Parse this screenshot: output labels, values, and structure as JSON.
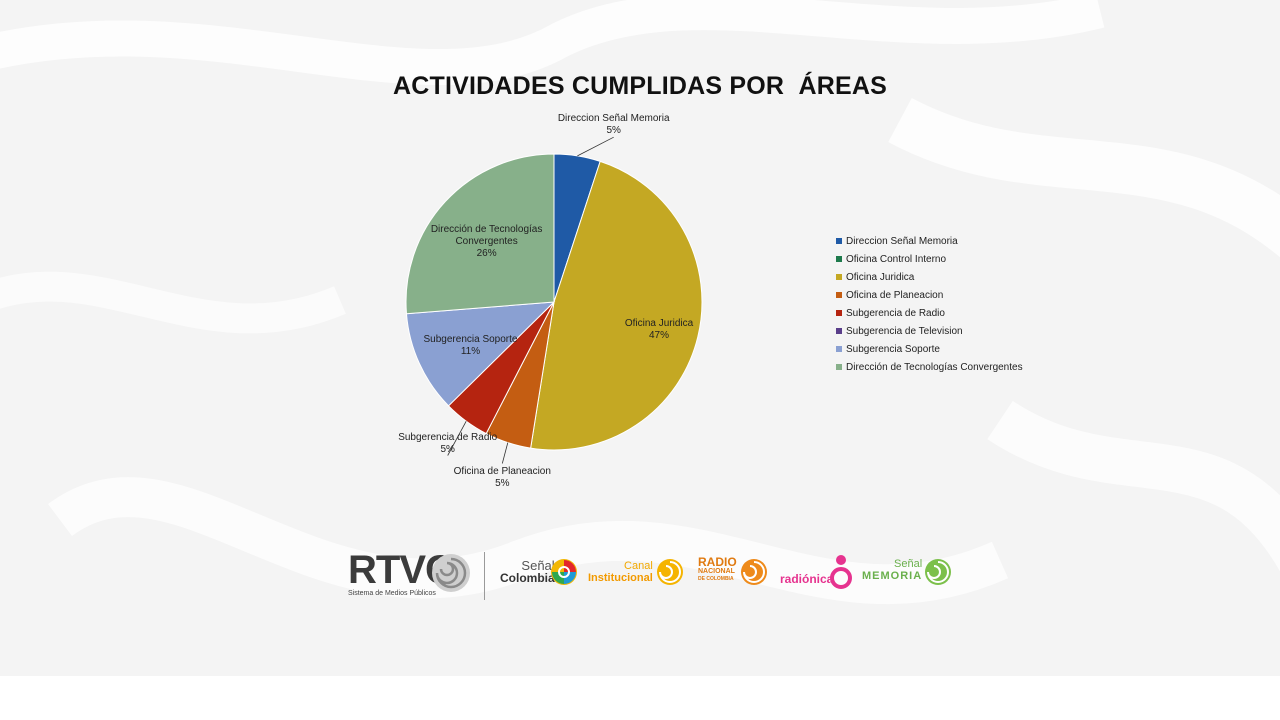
{
  "chart_data": {
    "type": "pie",
    "title": "ACTIVIDADES CUMPLIDAS POR  ÁREAS",
    "legend_position": "right",
    "slices": [
      {
        "label": "Direccion Señal Memoria",
        "value": 5,
        "value_label": "5%",
        "color": "#1f5aa6",
        "show_label": true
      },
      {
        "label": "Oficina Control Interno",
        "value": 0,
        "value_label": "0%",
        "color": "#1e7a4c",
        "show_label": false
      },
      {
        "label": "Oficina Juridica",
        "value": 47,
        "value_label": "47%",
        "color": "#c4a823",
        "show_label": true
      },
      {
        "label": "Oficina de Planeacion",
        "value": 5,
        "value_label": "5%",
        "color": "#c45d12",
        "show_label": true
      },
      {
        "label": "Subgerencia de Radio",
        "value": 5,
        "value_label": "5%",
        "color": "#b52410",
        "show_label": true
      },
      {
        "label": "Subgerencia de Television",
        "value": 0,
        "value_label": "0%",
        "color": "#5a3e8a",
        "show_label": false
      },
      {
        "label": "Subgerencia Soporte",
        "value": 11,
        "value_label": "11%",
        "color": "#8aa0d2",
        "show_label": true
      },
      {
        "label": "Dirección de Tecnologías Convergentes",
        "value": 26,
        "value_label": "26%",
        "color": "#87b08a",
        "show_label": true
      }
    ],
    "data_labels": [
      {
        "lines": [
          "Direccion Señal Memoria",
          "5%"
        ]
      },
      {
        "lines": [
          "Oficina Juridica",
          "47%"
        ]
      },
      {
        "lines": [
          "Oficina de Planeacion",
          "5%"
        ]
      },
      {
        "lines": [
          "Subgerencia de Radio",
          "5%"
        ]
      },
      {
        "lines": [
          "Subgerencia Soporte",
          "11%"
        ]
      },
      {
        "lines": [
          "Dirección de Tecnologías",
          "Convergentes",
          "26%"
        ]
      }
    ]
  },
  "logos": {
    "rtvc": {
      "wordmark": "RTVC",
      "tagline": "Sistema de Medios Públicos"
    },
    "senal_colombia": {
      "line1": "Señal",
      "line2": "Colombia"
    },
    "canal_institucional": {
      "line1": "Canal",
      "line2": "Institucional"
    },
    "radio_nacional": {
      "line1": "RADIO",
      "line2": "NACIONAL",
      "line3": "DE COLOMBIA"
    },
    "radionica": {
      "text": "radiónica"
    },
    "senal_memoria": {
      "line1": "Señal",
      "line2": "MEMORIA"
    }
  }
}
